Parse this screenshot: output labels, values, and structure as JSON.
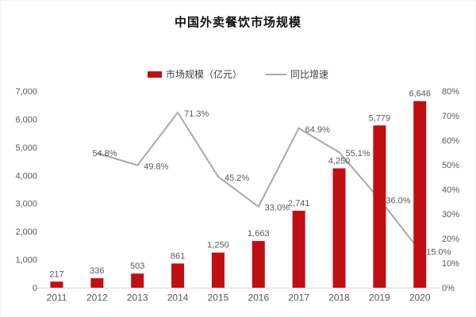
{
  "title": "中国外卖餐饮市场规模",
  "legend": {
    "bar_label": "市场规模（亿元）",
    "line_label": "同比增速"
  },
  "colors": {
    "bar": "#C00F13",
    "line": "#A8A8A8",
    "axis_line": "#D6D6D6",
    "text": "#595959",
    "title_text": "#111111"
  },
  "chart_data": {
    "type": "bar",
    "combo": "bar+line",
    "title": "中国外卖餐饮市场规模",
    "categories": [
      "2011",
      "2012",
      "2013",
      "2014",
      "2015",
      "2016",
      "2017",
      "2018",
      "2019",
      "2020"
    ],
    "series": [
      {
        "name": "市场规模（亿元）",
        "type": "bar",
        "axis": "left",
        "values": [
          217,
          336,
          503,
          861,
          1250,
          1663,
          2741,
          4250,
          5779,
          6646
        ],
        "labels": [
          "217",
          "336",
          "503",
          "861",
          "1,250",
          "1,663",
          "2,741",
          "4,250",
          "5,779",
          "6,646"
        ]
      },
      {
        "name": "同比增速",
        "type": "line",
        "axis": "right",
        "values": [
          null,
          54.8,
          49.8,
          71.3,
          45.2,
          33.0,
          64.9,
          55.1,
          36.0,
          15.0
        ],
        "labels": [
          null,
          "54.8%",
          "49.8%",
          "71.3%",
          "45.2%",
          "33.0%",
          "64.9%",
          "55.1%",
          "36.0%",
          "15.0%"
        ]
      }
    ],
    "left_axis": {
      "min": 0,
      "max": 7000,
      "step": 1000,
      "ticks": [
        "0",
        "1,000",
        "2,000",
        "3,000",
        "4,000",
        "5,000",
        "6,000",
        "7,000"
      ]
    },
    "right_axis": {
      "min": 0,
      "max": 80,
      "step": 10,
      "ticks": [
        "0%",
        "10%",
        "20%",
        "30%",
        "40%",
        "50%",
        "60%",
        "70%",
        "80%"
      ]
    },
    "grid": false,
    "legend_position": "top-center"
  }
}
